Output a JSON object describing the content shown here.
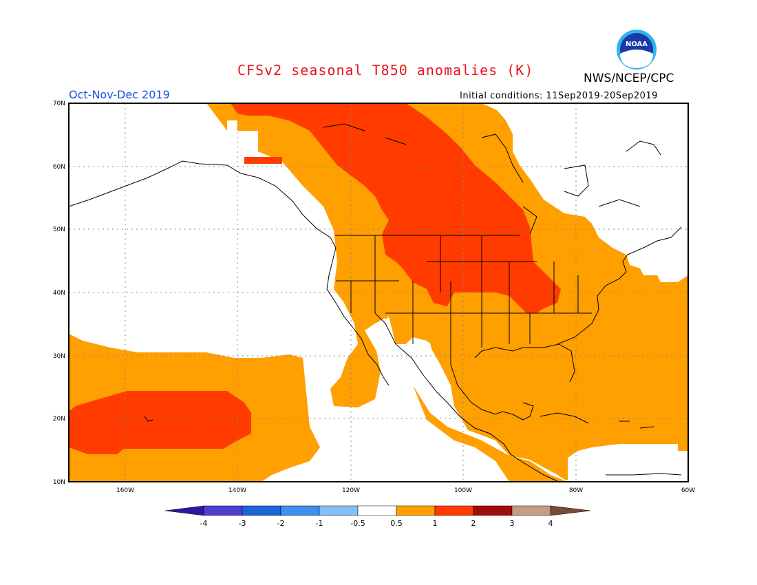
{
  "header": {
    "title": "CFSv2 seasonal T850 anomalies (K)",
    "agency": "NWS/NCEP/CPC",
    "period": "Oct-Nov-Dec 2019",
    "initial_conditions": "Initial conditions: 11Sep2019-20Sep2019",
    "logo_text": "NOAA"
  },
  "map": {
    "lat_labels": [
      "70N",
      "60N",
      "50N",
      "40N",
      "30N",
      "20N",
      "10N"
    ],
    "lon_labels": [
      "160W",
      "140W",
      "120W",
      "100W",
      "80W",
      "60W"
    ]
  },
  "colorbar": {
    "labels": [
      "-4",
      "-3",
      "-2",
      "-1",
      "-0.5",
      "0.5",
      "1",
      "2",
      "3",
      "4"
    ],
    "colors": [
      "#2a1aa0",
      "#4f3fd1",
      "#1f63d8",
      "#3d8ff0",
      "#86bff5",
      "#ffffff",
      "#ff9f00",
      "#ff3b00",
      "#a00b0b",
      "#c69c87",
      "#7a4a38"
    ]
  },
  "colors": {
    "anom_0_5_1": "#ff9f00",
    "anom_1_2": "#ff3b00",
    "title": "#e8141b",
    "period": "#1a4fe0"
  }
}
